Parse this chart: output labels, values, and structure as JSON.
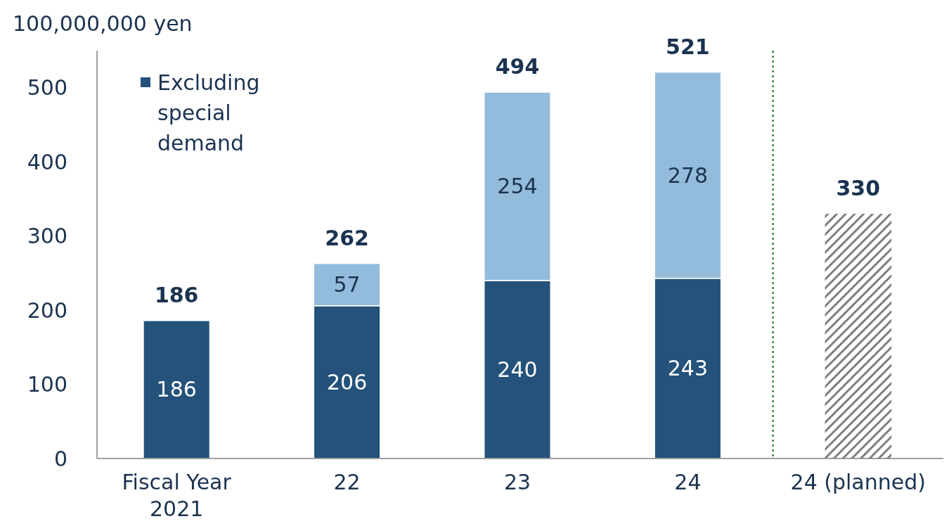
{
  "chart_data": {
    "type": "bar",
    "stacked": true,
    "ylabel": "100,000,000 yen",
    "categories": [
      "Fiscal Year 2021",
      "22",
      "23",
      "24",
      "24 (planned)"
    ],
    "series": [
      {
        "name": "Excluding special demand",
        "color": "#24527a",
        "values": [
          186,
          206,
          240,
          243,
          null
        ],
        "value_labels": [
          "186",
          "206",
          "240",
          "243",
          null
        ]
      },
      {
        "color": "#93bbdc",
        "values": [
          null,
          57,
          254,
          278,
          null
        ],
        "value_labels": [
          null,
          "57",
          "254",
          "278",
          null
        ]
      },
      {
        "color": "#7f7f7f",
        "values": [
          null,
          null,
          null,
          null,
          330
        ]
      }
    ],
    "totals": [
      "186",
      "262",
      "494",
      "521",
      "330"
    ],
    "ylim": [
      0,
      550
    ],
    "yticks": [
      0,
      100,
      200,
      300,
      400,
      500
    ],
    "grid": false,
    "legend": "top left"
  }
}
